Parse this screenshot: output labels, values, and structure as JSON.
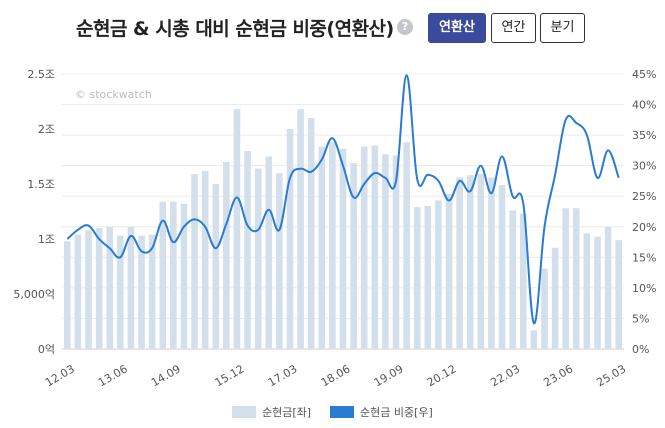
{
  "header": {
    "title": "순현금 & 시총 대비 순현금 비중(연환산)",
    "help_icon": "question-circle-icon",
    "help_glyph": "?",
    "tabs": [
      {
        "label": "연환산",
        "active": true
      },
      {
        "label": "연간",
        "active": false
      },
      {
        "label": "분기",
        "active": false
      }
    ]
  },
  "watermark": "© stockwatch",
  "chart_data": {
    "type": "bar+line",
    "x_tick_labels": [
      "12.03",
      "13.06",
      "14.09",
      "15.12",
      "17.03",
      "18.06",
      "19.09",
      "20.12",
      "22.03",
      "23.06",
      "25.03"
    ],
    "left_axis": {
      "labels": [
        "0억",
        "5,000억",
        "1조",
        "1.5조",
        "2조",
        "2.5조"
      ],
      "ylim": [
        0,
        25000
      ],
      "unit": "억원"
    },
    "right_axis": {
      "labels": [
        "0%",
        "5%",
        "10%",
        "15%",
        "20%",
        "25%",
        "30%",
        "35%",
        "40%",
        "45%"
      ],
      "ylim": [
        0,
        45
      ]
    },
    "grid": true,
    "legend_placement": "bottom-center",
    "series": [
      {
        "name": "순현금[좌]",
        "type": "bar",
        "color": "#d3dfeb",
        "values": [
          9800,
          10400,
          10800,
          11000,
          11100,
          10300,
          11100,
          10300,
          10400,
          13400,
          13400,
          13200,
          15900,
          16200,
          15000,
          17000,
          21800,
          18000,
          16400,
          17500,
          16000,
          20000,
          21800,
          21000,
          18400,
          18800,
          18200,
          16900,
          18400,
          18500,
          17700,
          17600,
          18800,
          12900,
          13000,
          13500,
          14100,
          15600,
          15800,
          15900,
          15600,
          14900,
          12600,
          12300,
          1700,
          7300,
          9200,
          12800,
          12800,
          10500,
          10200,
          11100,
          9900
        ]
      },
      {
        "name": "순현금 비중[우]",
        "type": "line",
        "color": "#2a7bd4",
        "values": [
          18.0,
          19.5,
          20.2,
          18.0,
          16.5,
          15.0,
          18.5,
          16.0,
          16.5,
          21.0,
          17.5,
          20.0,
          21.2,
          20.0,
          16.5,
          20.5,
          24.8,
          20.2,
          19.5,
          22.8,
          19.5,
          28.0,
          29.5,
          29.0,
          31.0,
          34.5,
          30.0,
          24.8,
          27.0,
          28.8,
          28.0,
          27.5,
          44.8,
          27.8,
          28.5,
          27.5,
          24.3,
          27.5,
          25.8,
          30.0,
          25.5,
          31.5,
          25.0,
          23.8,
          4.2,
          20.0,
          28.5,
          37.5,
          37.0,
          35.0,
          28.0,
          32.5,
          28.0
        ]
      }
    ]
  }
}
